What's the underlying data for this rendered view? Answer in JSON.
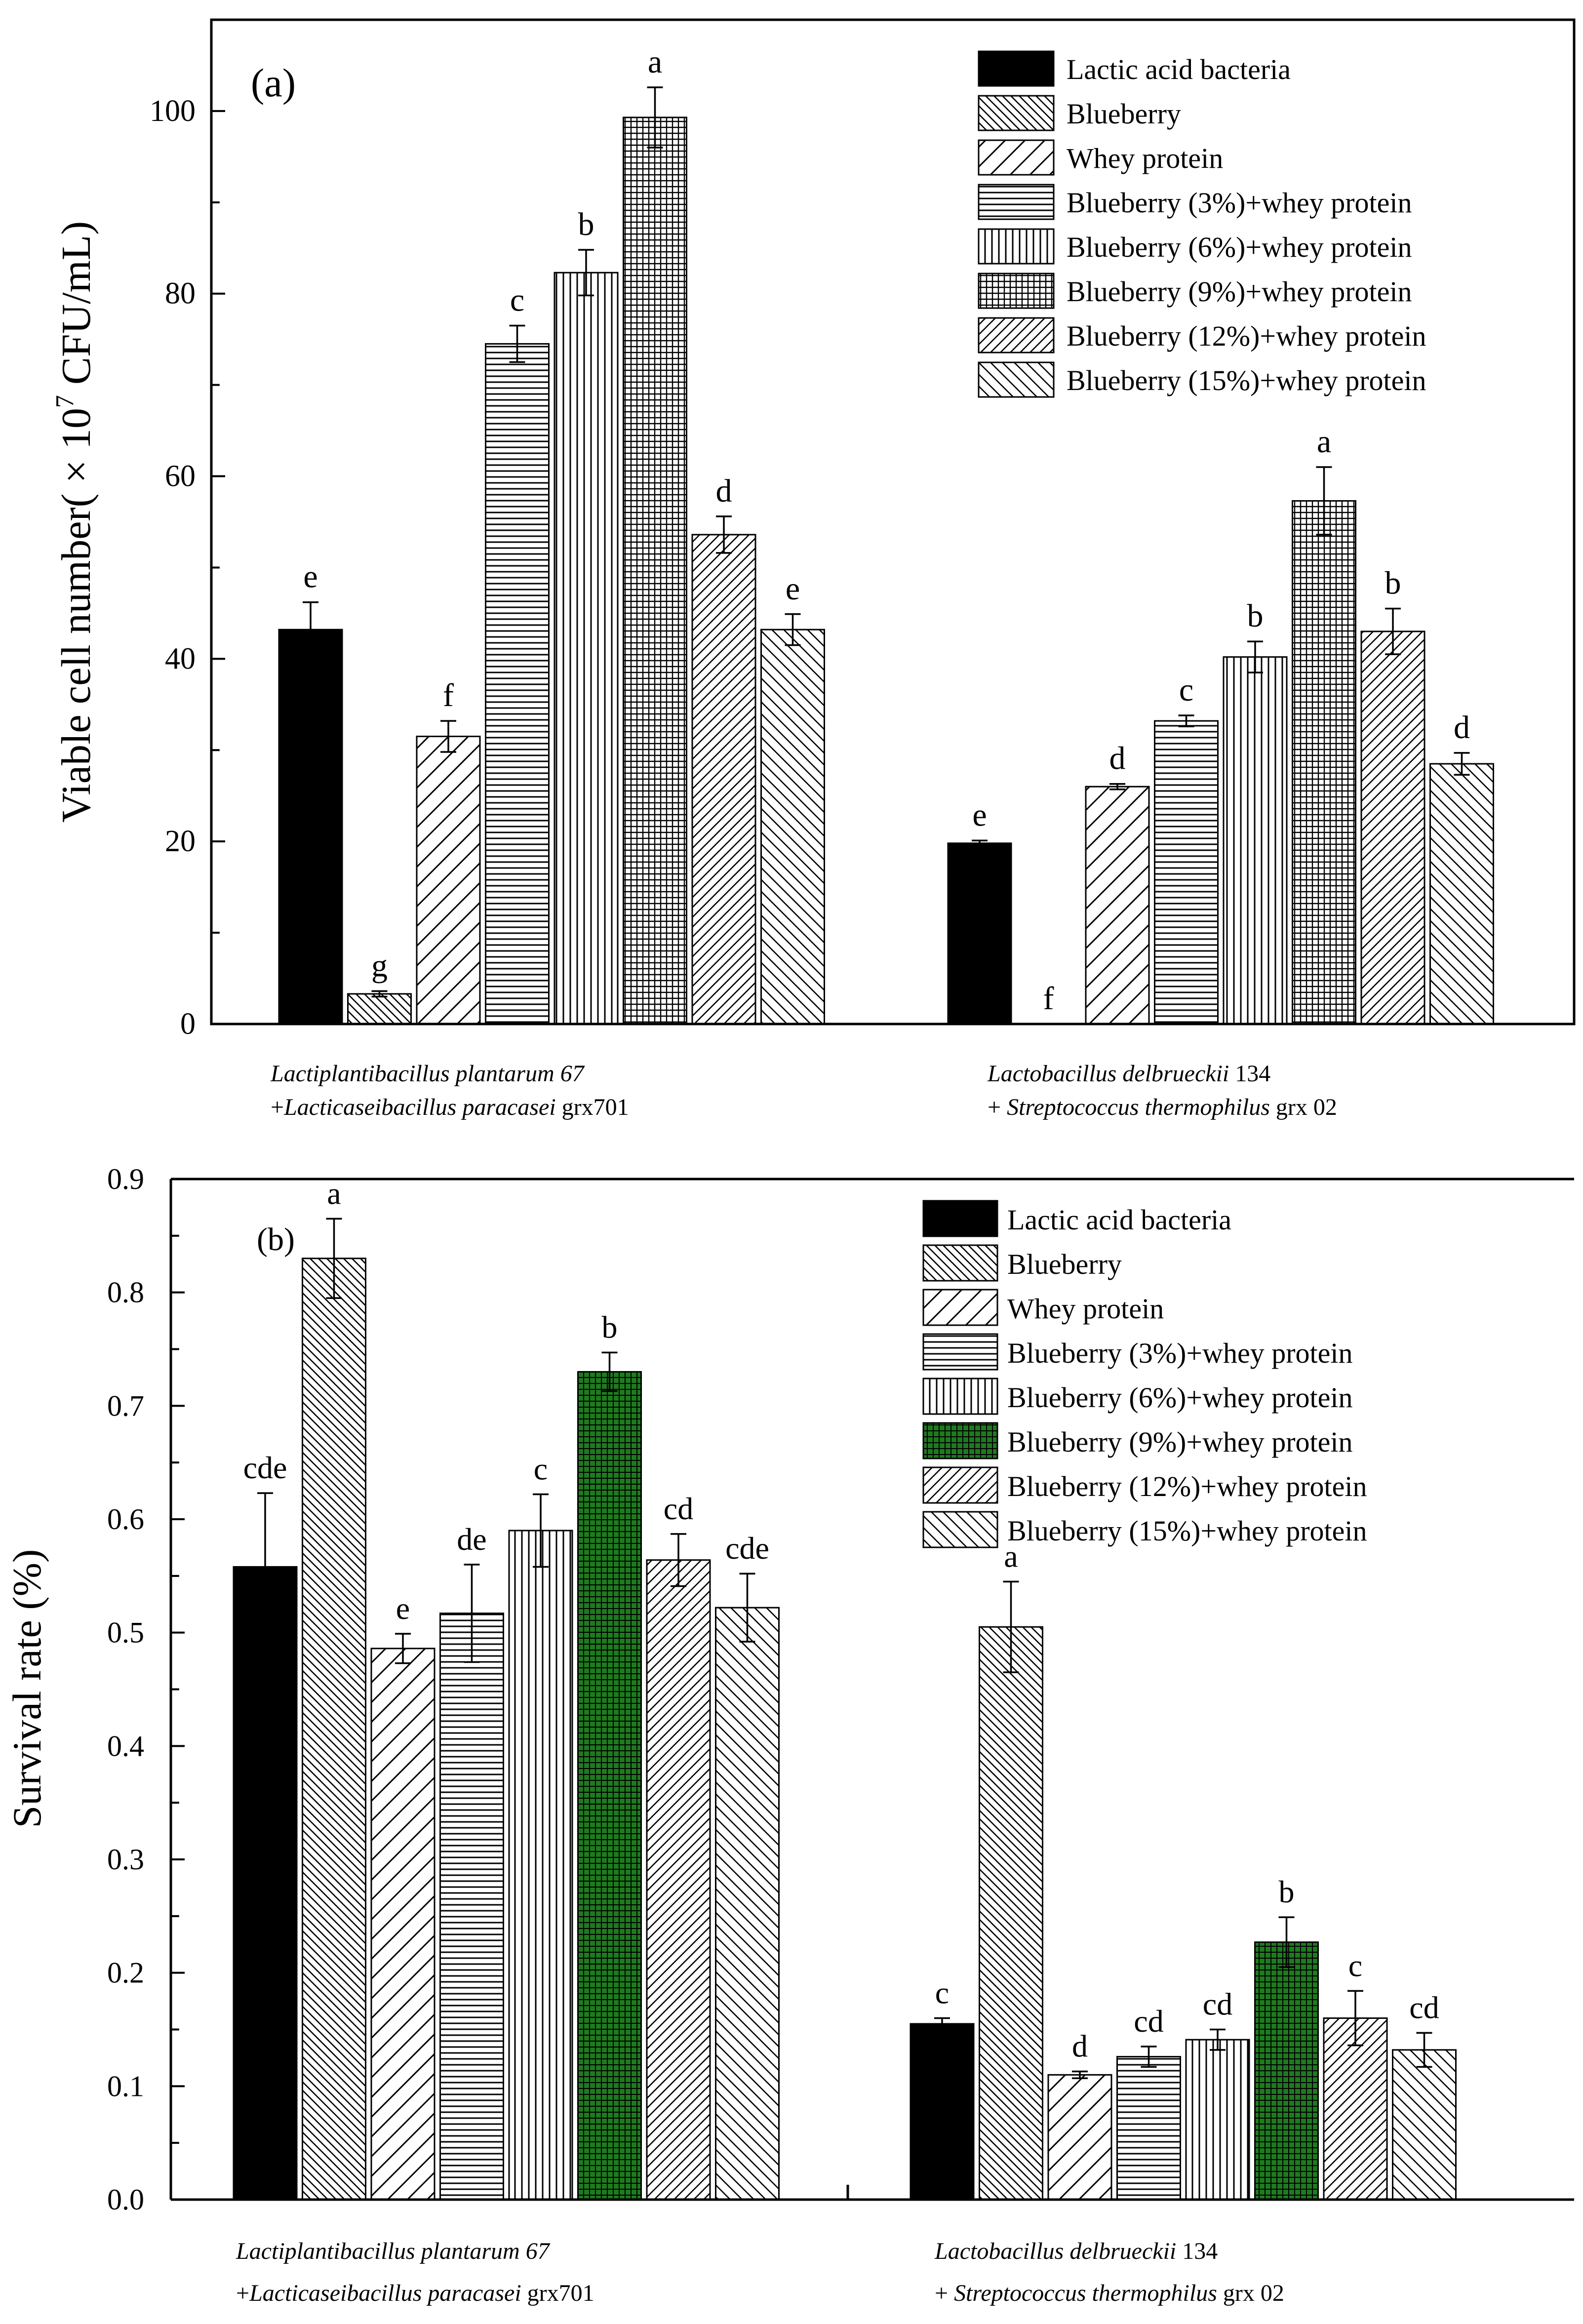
{
  "legend_labels": [
    "Lactic acid bacteria",
    "Blueberry",
    "Whey protein",
    "Blueberry (3%)+whey protein",
    "Blueberry (6%)+whey protein",
    "Blueberry (9%)+whey protein",
    "Blueberry (12%)+whey protein",
    "Blueberry (15%)+whey protein"
  ],
  "group_labels": {
    "g1_line1_species": "Lactiplantibacillus plantarum 67",
    "g1_line2_prefix": "+",
    "g1_line2_species": "Lacticaseibacillus paracasei",
    "g1_line2_strain": " grx701",
    "g2_line1_species": "Lactobacillus delbrueckii",
    "g2_line1_strain": " 134",
    "g2_line2_prefix": "+ ",
    "g2_line2_species": "Streptococcus thermophilus",
    "g2_line2_strain": " grx 02"
  },
  "colors": {
    "black": "#000000",
    "green": "#1f7a1f",
    "white": "#ffffff"
  },
  "chart_data": [
    {
      "type": "bar",
      "panel": "(a)",
      "title": "",
      "xlabel": "",
      "ylabel": "Viable cell number( × 10 7 CFU/mL)",
      "ylabel_parts": {
        "pre": "Viable cell number(",
        "times": " × 10",
        "exp": "7",
        "post": " CFU/mL)"
      },
      "ylim": [
        0,
        110
      ],
      "yticks": [
        0,
        20,
        40,
        60,
        80,
        100
      ],
      "ytick_labels": [
        "0",
        "20",
        "40",
        "60",
        "80",
        "100"
      ],
      "categories": [
        "Lactiplantibacillus plantarum 67 +Lacticaseibacillus paracasei grx701",
        "Lactobacillus delbrueckii 134 + Streptococcus thermophilus grx 02"
      ],
      "series": [
        {
          "name": "Lactic acid bacteria",
          "values": [
            43.2,
            19.8
          ],
          "errors": [
            3.0,
            0.3
          ],
          "letters": [
            "e",
            "e"
          ]
        },
        {
          "name": "Blueberry",
          "values": [
            3.3,
            0.0
          ],
          "errors": [
            0.3,
            0.0
          ],
          "letters": [
            "g",
            "f"
          ]
        },
        {
          "name": "Whey protein",
          "values": [
            31.5,
            26.0
          ],
          "errors": [
            1.7,
            0.3
          ],
          "letters": [
            "f",
            "d"
          ]
        },
        {
          "name": "Blueberry (3%)+whey protein",
          "values": [
            74.5,
            33.2
          ],
          "errors": [
            2.0,
            0.6
          ],
          "letters": [
            "c",
            "c"
          ]
        },
        {
          "name": "Blueberry (6%)+whey protein",
          "values": [
            82.3,
            40.2
          ],
          "errors": [
            2.5,
            1.7
          ],
          "letters": [
            "b",
            "b"
          ]
        },
        {
          "name": "Blueberry (9%)+whey protein",
          "values": [
            99.3,
            57.3
          ],
          "errors": [
            3.3,
            3.7
          ],
          "letters": [
            "a",
            "a"
          ]
        },
        {
          "name": "Blueberry (12%)+whey protein",
          "values": [
            53.6,
            43.0
          ],
          "errors": [
            2.0,
            2.5
          ],
          "letters": [
            "d",
            "b"
          ]
        },
        {
          "name": "Blueberry (15%)+whey protein",
          "values": [
            43.2,
            28.5
          ],
          "errors": [
            1.7,
            1.2
          ],
          "letters": [
            "e",
            "d"
          ]
        }
      ]
    },
    {
      "type": "bar",
      "panel": "(b)",
      "title": "",
      "xlabel": "",
      "ylabel": "Survival rate (%)",
      "ylim": [
        0,
        0.9
      ],
      "yticks": [
        0,
        0.1,
        0.2,
        0.3,
        0.4,
        0.5,
        0.6,
        0.7,
        0.8,
        0.9
      ],
      "ytick_labels": [
        "0.0",
        "0.1",
        "0.2",
        "0.3",
        "0.4",
        "0.5",
        "0.6",
        "0.7",
        "0.8",
        "0.9"
      ],
      "categories": [
        "Lactiplantibacillus plantarum 67 +Lacticaseibacillus paracasei grx701",
        "Lactobacillus delbrueckii 134 + Streptococcus thermophilus grx 02"
      ],
      "series": [
        {
          "name": "Lactic acid bacteria",
          "values": [
            0.558,
            0.155
          ],
          "errors": [
            0.065,
            0.005
          ],
          "letters": [
            "cde",
            "c"
          ]
        },
        {
          "name": "Blueberry",
          "values": [
            0.83,
            0.505
          ],
          "errors": [
            0.035,
            0.04
          ],
          "letters": [
            "a",
            "a"
          ]
        },
        {
          "name": "Whey protein",
          "values": [
            0.486,
            0.11
          ],
          "errors": [
            0.013,
            0.003
          ],
          "letters": [
            "e",
            "d"
          ]
        },
        {
          "name": "Blueberry (3%)+whey protein",
          "values": [
            0.517,
            0.126
          ],
          "errors": [
            0.043,
            0.009
          ],
          "letters": [
            "de",
            "cd"
          ]
        },
        {
          "name": "Blueberry (6%)+whey protein",
          "values": [
            0.59,
            0.141
          ],
          "errors": [
            0.032,
            0.009
          ],
          "letters": [
            "c",
            "cd"
          ]
        },
        {
          "name": "Blueberry (9%)+whey protein",
          "values": [
            0.73,
            0.227
          ],
          "errors": [
            0.017,
            0.022
          ],
          "letters": [
            "b",
            "b"
          ]
        },
        {
          "name": "Blueberry (12%)+whey protein",
          "values": [
            0.564,
            0.16
          ],
          "errors": [
            0.023,
            0.024
          ],
          "letters": [
            "cd",
            "c"
          ]
        },
        {
          "name": "Blueberry (15%)+whey protein",
          "values": [
            0.522,
            0.132
          ],
          "errors": [
            0.03,
            0.015
          ],
          "letters": [
            "cde",
            "cd"
          ]
        }
      ]
    }
  ]
}
